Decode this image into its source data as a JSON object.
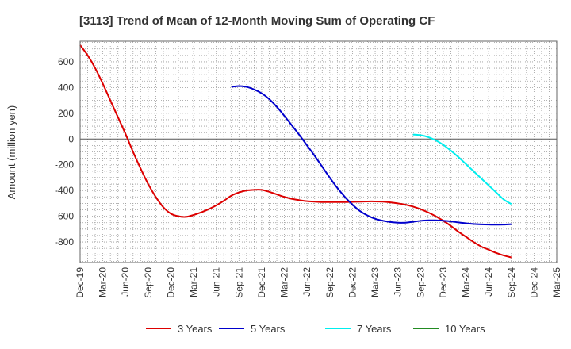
{
  "chart_data": {
    "type": "line",
    "title": "[3113]  Trend of Mean of 12-Month Moving Sum of Operating CF",
    "ylabel": "Amount (million yen)",
    "xlabel": "",
    "ylim": [
      -960,
      760
    ],
    "yticks": [
      600,
      400,
      200,
      0,
      -200,
      -400,
      -600,
      -800
    ],
    "ytick_labels": [
      "600",
      "400",
      "200",
      "0",
      "-200",
      "-400",
      "-600",
      "-800"
    ],
    "x_range": [
      "2019-12",
      "2025-03"
    ],
    "x_tick_labels": [
      "Dec-19",
      "Mar-20",
      "Jun-20",
      "Sep-20",
      "Dec-20",
      "Mar-21",
      "Jun-21",
      "Sep-21",
      "Dec-21",
      "Mar-22",
      "Jun-22",
      "Sep-22",
      "Dec-22",
      "Mar-23",
      "Jun-23",
      "Sep-23",
      "Dec-23",
      "Mar-24",
      "Jun-24",
      "Sep-24",
      "Dec-24",
      "Mar-25"
    ],
    "grid": true,
    "legend_position": "bottom",
    "series": [
      {
        "name": "3 Years",
        "color": "#dd0000",
        "points": [
          [
            "2019-12",
            730
          ],
          [
            "2020-01",
            650
          ],
          [
            "2020-02",
            550
          ],
          [
            "2020-03",
            430
          ],
          [
            "2020-04",
            300
          ],
          [
            "2020-05",
            170
          ],
          [
            "2020-06",
            40
          ],
          [
            "2020-07",
            -100
          ],
          [
            "2020-08",
            -230
          ],
          [
            "2020-09",
            -350
          ],
          [
            "2020-10",
            -450
          ],
          [
            "2020-11",
            -530
          ],
          [
            "2020-12",
            -580
          ],
          [
            "2021-01",
            -600
          ],
          [
            "2021-02",
            -605
          ],
          [
            "2021-03",
            -590
          ],
          [
            "2021-04",
            -570
          ],
          [
            "2021-05",
            -545
          ],
          [
            "2021-06",
            -515
          ],
          [
            "2021-07",
            -480
          ],
          [
            "2021-08",
            -440
          ],
          [
            "2021-09",
            -415
          ],
          [
            "2021-10",
            -400
          ],
          [
            "2021-11",
            -395
          ],
          [
            "2021-12",
            -395
          ],
          [
            "2022-01",
            -410
          ],
          [
            "2022-02",
            -430
          ],
          [
            "2022-03",
            -450
          ],
          [
            "2022-04",
            -465
          ],
          [
            "2022-05",
            -475
          ],
          [
            "2022-06",
            -483
          ],
          [
            "2022-07",
            -487
          ],
          [
            "2022-08",
            -490
          ],
          [
            "2022-09",
            -490
          ],
          [
            "2022-10",
            -490
          ],
          [
            "2022-11",
            -490
          ],
          [
            "2022-12",
            -488
          ],
          [
            "2023-01",
            -487
          ],
          [
            "2023-02",
            -485
          ],
          [
            "2023-03",
            -485
          ],
          [
            "2023-04",
            -487
          ],
          [
            "2023-05",
            -492
          ],
          [
            "2023-06",
            -500
          ],
          [
            "2023-07",
            -510
          ],
          [
            "2023-08",
            -525
          ],
          [
            "2023-09",
            -545
          ],
          [
            "2023-10",
            -570
          ],
          [
            "2023-11",
            -600
          ],
          [
            "2023-12",
            -635
          ],
          [
            "2024-01",
            -675
          ],
          [
            "2024-02",
            -720
          ],
          [
            "2024-03",
            -760
          ],
          [
            "2024-04",
            -800
          ],
          [
            "2024-05",
            -835
          ],
          [
            "2024-06",
            -860
          ],
          [
            "2024-07",
            -885
          ],
          [
            "2024-08",
            -905
          ],
          [
            "2024-09",
            -920
          ]
        ]
      },
      {
        "name": "5 Years",
        "color": "#0000cc",
        "points": [
          [
            "2021-08",
            405
          ],
          [
            "2021-09",
            412
          ],
          [
            "2021-10",
            405
          ],
          [
            "2021-11",
            385
          ],
          [
            "2021-12",
            355
          ],
          [
            "2022-01",
            310
          ],
          [
            "2022-02",
            250
          ],
          [
            "2022-03",
            180
          ],
          [
            "2022-04",
            105
          ],
          [
            "2022-05",
            30
          ],
          [
            "2022-06",
            -50
          ],
          [
            "2022-07",
            -130
          ],
          [
            "2022-08",
            -215
          ],
          [
            "2022-09",
            -300
          ],
          [
            "2022-10",
            -380
          ],
          [
            "2022-11",
            -450
          ],
          [
            "2022-12",
            -510
          ],
          [
            "2023-01",
            -560
          ],
          [
            "2023-02",
            -595
          ],
          [
            "2023-03",
            -620
          ],
          [
            "2023-04",
            -635
          ],
          [
            "2023-05",
            -645
          ],
          [
            "2023-06",
            -650
          ],
          [
            "2023-07",
            -650
          ],
          [
            "2023-08",
            -643
          ],
          [
            "2023-09",
            -636
          ],
          [
            "2023-10",
            -632
          ],
          [
            "2023-11",
            -632
          ],
          [
            "2023-12",
            -635
          ],
          [
            "2024-01",
            -640
          ],
          [
            "2024-02",
            -648
          ],
          [
            "2024-03",
            -655
          ],
          [
            "2024-04",
            -660
          ],
          [
            "2024-05",
            -663
          ],
          [
            "2024-06",
            -665
          ],
          [
            "2024-07",
            -666
          ],
          [
            "2024-08",
            -665
          ],
          [
            "2024-09",
            -662
          ]
        ]
      },
      {
        "name": "7 Years",
        "color": "#00eeee",
        "points": [
          [
            "2023-08",
            35
          ],
          [
            "2023-09",
            30
          ],
          [
            "2023-10",
            15
          ],
          [
            "2023-11",
            -10
          ],
          [
            "2023-12",
            -45
          ],
          [
            "2024-01",
            -90
          ],
          [
            "2024-02",
            -140
          ],
          [
            "2024-03",
            -195
          ],
          [
            "2024-04",
            -250
          ],
          [
            "2024-05",
            -305
          ],
          [
            "2024-06",
            -360
          ],
          [
            "2024-07",
            -415
          ],
          [
            "2024-08",
            -470
          ],
          [
            "2024-09",
            -505
          ]
        ]
      },
      {
        "name": "10 Years",
        "color": "#228b22",
        "points": []
      }
    ]
  }
}
